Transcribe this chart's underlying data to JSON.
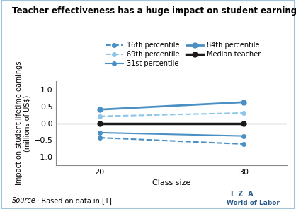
{
  "title": "Teacher effectiveness has a huge impact on student earnings",
  "xlabel": "Class size",
  "ylabel": "Impact on student lifetime earnings\n(millions of US$)",
  "x": [
    20,
    30
  ],
  "series": {
    "16th percentile": {
      "y": [
        -0.43,
        -0.62
      ],
      "color": "#4a90c4",
      "linestyle": "dashed",
      "linewidth": 1.5,
      "marker": "o",
      "markersize": 4
    },
    "31st percentile": {
      "y": [
        -0.28,
        -0.38
      ],
      "color": "#4a90c4",
      "linestyle": "solid",
      "linewidth": 1.5,
      "marker": "o",
      "markersize": 4
    },
    "69th percentile": {
      "y": [
        0.21,
        0.31
      ],
      "color": "#8ec6e8",
      "linestyle": "dashed",
      "linewidth": 1.5,
      "marker": "o",
      "markersize": 4
    },
    "84th percentile": {
      "y": [
        0.41,
        0.63
      ],
      "color": "#4a90c4",
      "linestyle": "solid",
      "linewidth": 2.0,
      "marker": "o",
      "markersize": 5
    },
    "Median teacher": {
      "y": [
        0.0,
        0.0
      ],
      "color": "#1a1a1a",
      "linestyle": "solid",
      "linewidth": 2.5,
      "marker": "o",
      "markersize": 5
    }
  },
  "ylim": [
    -1.25,
    1.25
  ],
  "yticks": [
    -1.0,
    -0.5,
    0,
    0.5,
    1.0
  ],
  "xticks": [
    20,
    30
  ],
  "source_text_italic": "Source",
  "source_text_normal": ": Based on data in [1].",
  "border_color": "#a0c4d8",
  "background_color": "#ffffff",
  "zero_line_color": "#b0b0b0",
  "iza_line1": "I  Z  A",
  "iza_line2": "World of Labor",
  "iza_color": "#2a5a8a"
}
